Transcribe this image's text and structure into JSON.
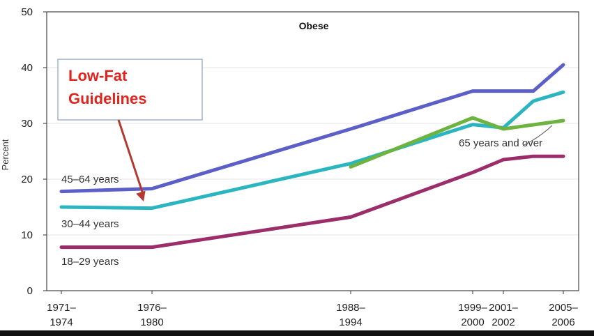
{
  "chart_data": {
    "type": "line",
    "title": "Obese",
    "ylabel": "Percent",
    "xlabel": "",
    "ylim": [
      0,
      50
    ],
    "yticks": [
      "0",
      "10",
      "20",
      "30",
      "40",
      "50"
    ],
    "grid": true,
    "x_ticks": [
      {
        "pos": 0,
        "line1": "1971–",
        "line2": "1974"
      },
      {
        "pos": 1,
        "line1": "1976–",
        "line2": "1980"
      },
      {
        "pos": 2,
        "line1": "1988–",
        "line2": "1994"
      },
      {
        "pos": 3,
        "line1": "1999–",
        "line2": "2000"
      },
      {
        "pos": 4,
        "line1": "2001–",
        "line2": "2002"
      },
      {
        "pos": 5,
        "line1": "2005–",
        "line2": "2006"
      }
    ],
    "series": [
      {
        "name": "45–64 years",
        "color": "#5b5fc7",
        "points": [
          [
            0,
            17.8
          ],
          [
            1,
            18.3
          ],
          [
            2,
            29
          ],
          [
            3,
            35.8
          ],
          [
            4,
            35.8
          ],
          [
            4.5,
            35.8
          ],
          [
            5,
            40.5
          ]
        ]
      },
      {
        "name": "30–44 years",
        "color": "#2bb5c0",
        "points": [
          [
            0,
            15
          ],
          [
            1,
            14.8
          ],
          [
            2,
            22.8
          ],
          [
            3,
            29.8
          ],
          [
            4,
            29.2
          ],
          [
            4.5,
            34
          ],
          [
            5,
            35.6
          ]
        ]
      },
      {
        "name": "65 years and over",
        "color": "#6db33f",
        "points": [
          [
            2,
            22.2
          ],
          [
            3,
            31
          ],
          [
            4,
            29
          ],
          [
            5,
            30.5
          ]
        ]
      },
      {
        "name": "18–29 years",
        "color": "#9b2d6a",
        "points": [
          [
            0,
            7.8
          ],
          [
            1,
            7.8
          ],
          [
            2,
            13.2
          ],
          [
            3,
            21.2
          ],
          [
            4,
            23.5
          ],
          [
            4.5,
            24.1
          ],
          [
            5,
            24.1
          ]
        ]
      }
    ],
    "annotation": {
      "lines": [
        "Low-Fat",
        "Guidelines"
      ],
      "color": "#e3231e",
      "arrow_target": {
        "x": 1,
        "y": 16.5
      }
    }
  }
}
